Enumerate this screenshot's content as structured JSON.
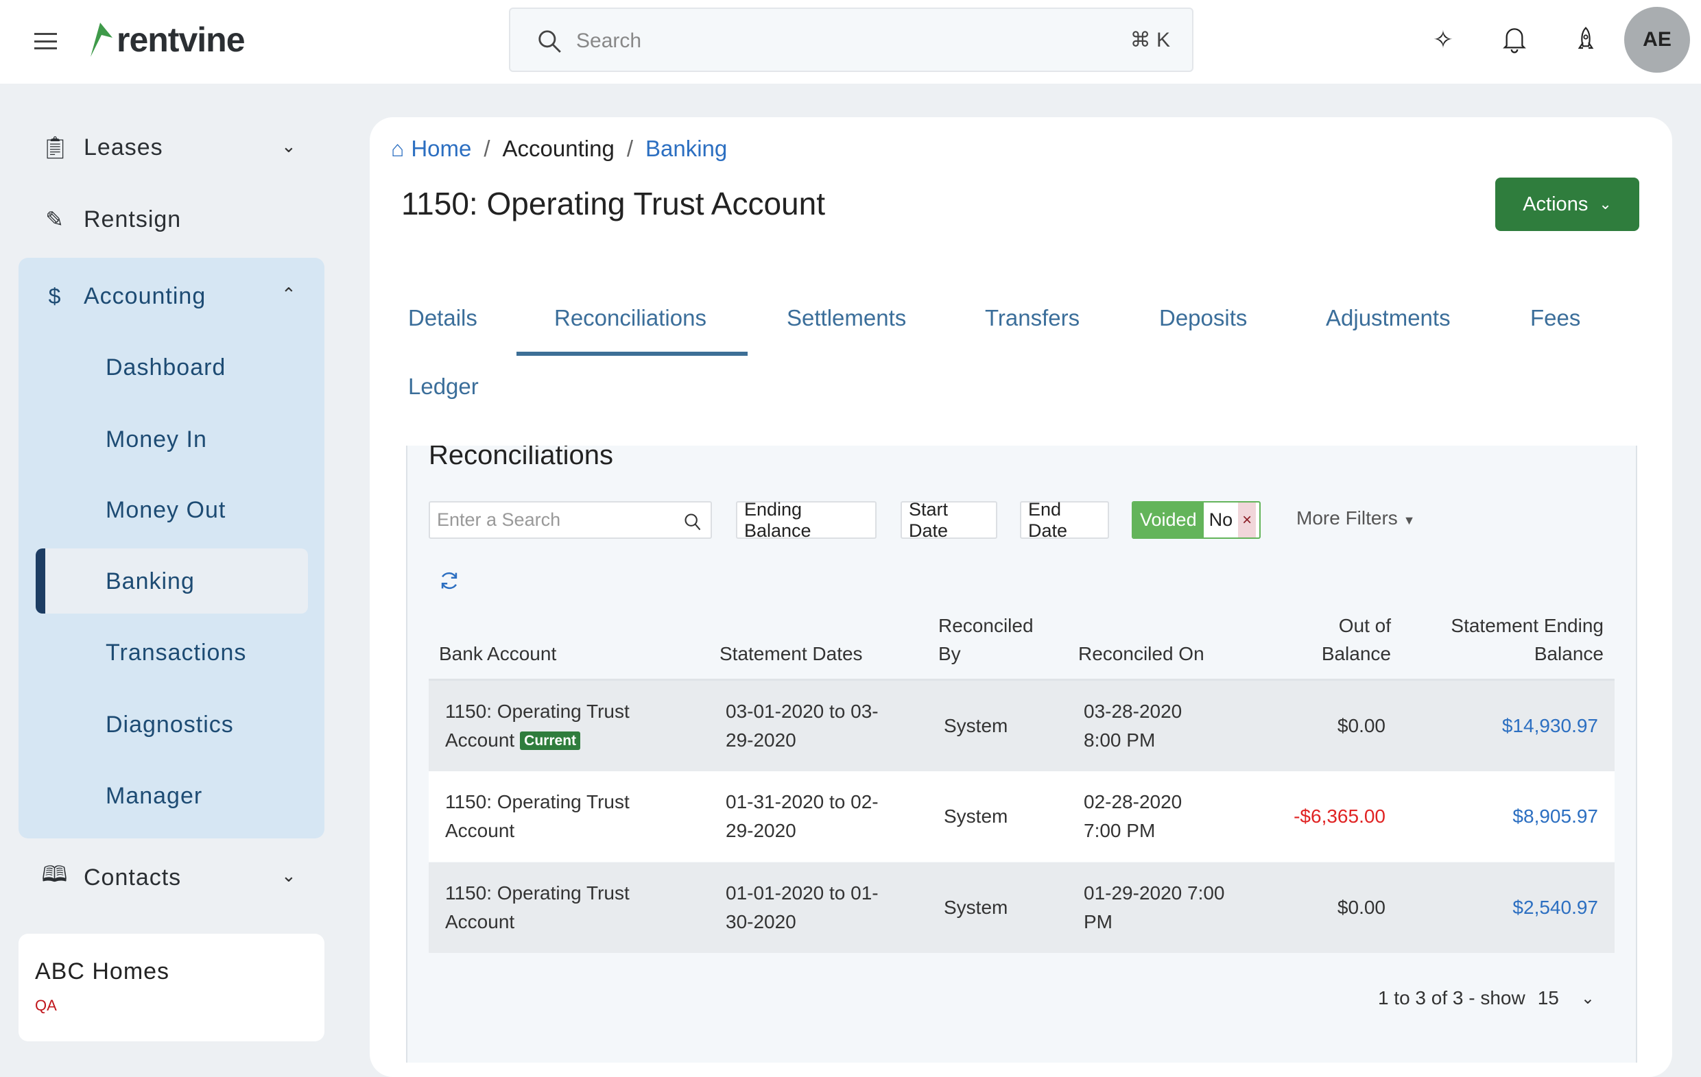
{
  "header": {
    "logo_text": "rentvine",
    "search_placeholder": "Search",
    "search_shortcut": "⌘ K",
    "avatar_initials": "AE"
  },
  "sidebar": {
    "items": [
      {
        "label": "Leases"
      },
      {
        "label": "Rentsign"
      },
      {
        "label": "Accounting"
      },
      {
        "label": "Contacts"
      }
    ],
    "accounting_sub": [
      "Dashboard",
      "Money In",
      "Money Out",
      "Banking",
      "Transactions",
      "Diagnostics",
      "Manager"
    ],
    "org": {
      "name": "ABC Homes",
      "env": "QA"
    }
  },
  "breadcrumb": [
    "Home",
    "Accounting",
    "Banking"
  ],
  "page_title": "1150: Operating Trust Account",
  "actions_label": "Actions",
  "tabs": [
    "Details",
    "Reconciliations",
    "Settlements",
    "Transfers",
    "Deposits",
    "Adjustments",
    "Fees",
    "Ledger"
  ],
  "section_title": "Reconciliations",
  "filters": {
    "search_placeholder": "Enter a Search",
    "ending_balance": "Ending Balance",
    "start_date": "Start Date",
    "end_date": "End Date",
    "voided_label": "Voided",
    "voided_value": "No",
    "voided_clear": "×",
    "more_filters": "More Filters"
  },
  "table": {
    "headers": {
      "bank_account": "Bank Account",
      "statement_dates": "Statement Dates",
      "reconciled_by_1": "Reconciled",
      "reconciled_by_2": "By",
      "reconciled_on": "Reconciled On",
      "out_of_balance_1": "Out of",
      "out_of_balance_2": "Balance",
      "ending_1": "Statement Ending",
      "ending_2": "Balance"
    },
    "rows": [
      {
        "account_1": "1150: Operating Trust",
        "account_2": "Account",
        "badge": "Current",
        "dates_1": "03-01-2020 to 03-",
        "dates_2": "29-2020",
        "by": "System",
        "on_1": "03-28-2020",
        "on_2": "8:00 PM",
        "out": "$0.00",
        "ending": "$14,930.97"
      },
      {
        "account_1": "1150: Operating Trust",
        "account_2": "Account",
        "dates_1": "01-31-2020 to 02-",
        "dates_2": "29-2020",
        "by": "System",
        "on_1": "02-28-2020",
        "on_2": "7:00 PM",
        "out": "-$6,365.00",
        "ending": "$8,905.97"
      },
      {
        "account_1": "1150: Operating Trust",
        "account_2": "Account",
        "dates_1": "01-01-2020 to 01-",
        "dates_2": "30-2020",
        "by": "System",
        "on_1": "01-29-2020 7:00",
        "on_2": "PM",
        "out": "$0.00",
        "ending": "$2,540.97"
      }
    ]
  },
  "pagination": {
    "summary": "1 to 3 of 3 - show",
    "page_size": "15"
  },
  "colors": {
    "brand_green": "#2f7d3d",
    "link_blue": "#2c6fc1",
    "negative_red": "#e02424"
  }
}
